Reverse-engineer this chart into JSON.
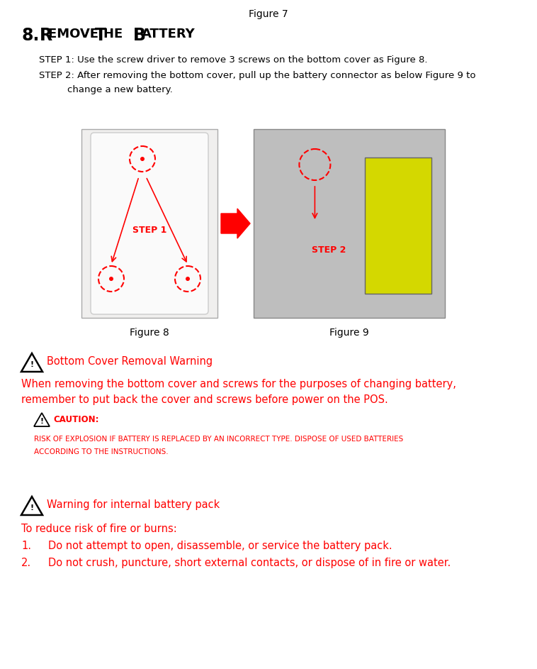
{
  "fig7_label": "Figure 7",
  "step1": "STEP 1: Use the screw driver to remove 3 screws on the bottom cover as Figure 8.",
  "step2_line1": "STEP 2: After removing the bottom cover, pull up the battery connector as below Figure 9 to",
  "step2_line2": "change a new battery.",
  "fig8_label": "Figure 8",
  "fig9_label": "Figure 9",
  "warning1_title": "Bottom Cover Removal Warning",
  "warning1_body1": "When removing the bottom cover and screws for the purposes of changing battery,",
  "warning1_body2": "remember to put back the cover and screws before power on the POS.",
  "caution_label": "CAUTION:",
  "caution_body1": "RISK OF EXPLOSION IF BATTERY IS REPLACED BY AN INCORRECT TYPE. DISPOSE OF USED BATTERIES",
  "caution_body2": "ACCORDING TO THE INSTRUCTIONS.",
  "warning2_title": "Warning for internal battery pack",
  "warning2_intro": "To reduce risk of fire or burns:",
  "warning2_item1": "Do not attempt to open, disassemble, or service the battery pack.",
  "warning2_item2": "Do not crush, puncture, short external contacts, or dispose of in fire or water.",
  "red": "#FF0000",
  "black": "#000000",
  "white": "#FFFFFF",
  "img1_facecolor": "#F0EFEE",
  "img2_facecolor": "#BEBEBE"
}
